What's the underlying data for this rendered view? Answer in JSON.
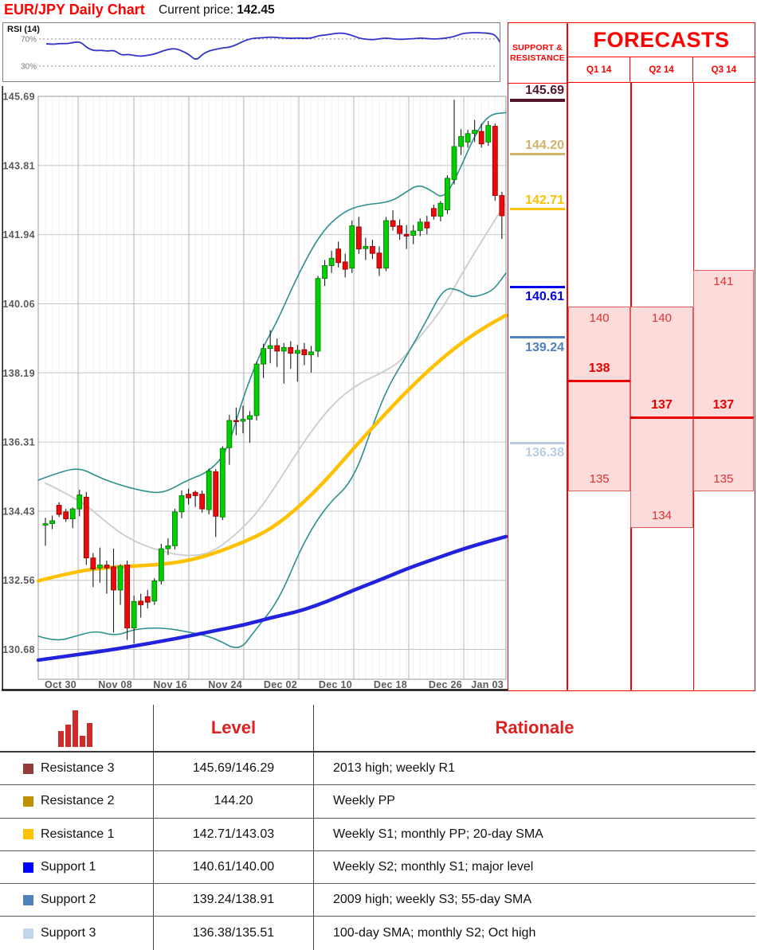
{
  "header": {
    "title": "EUR/JPY Daily Chart",
    "price_label": "Current price:",
    "price_value": "142.45"
  },
  "rsi": {
    "label": "RSI (14)",
    "upper_label": "70%",
    "lower_label": "30%",
    "upper_level": 70,
    "lower_level": 30,
    "values": [
      63,
      62,
      63.5,
      63,
      65,
      66,
      57,
      52.5,
      53.5,
      52,
      53.5,
      46,
      47.5,
      45.5,
      44.5,
      46,
      48,
      52,
      55,
      56,
      52,
      47,
      38,
      48,
      53,
      55,
      57,
      58,
      62,
      67,
      70.5,
      71.5,
      72,
      73,
      72,
      71.5,
      71,
      71.5,
      71,
      71.5,
      75,
      76,
      77.5,
      79,
      78,
      75,
      71,
      69.5,
      69,
      70.5,
      71.5,
      70,
      69.5,
      70,
      70.5,
      71.5,
      70.5,
      70,
      70.5,
      72,
      74,
      78,
      79,
      79.5,
      79,
      78.5,
      76,
      58,
      52
    ]
  },
  "chart_data": {
    "type": "candlestick",
    "title": "EUR/JPY Daily Chart",
    "y_axis_labels": [
      "145.69",
      "143.81",
      "141.94",
      "140.06",
      "138.19",
      "136.31",
      "134.43",
      "132.56",
      "130.68"
    ],
    "x_axis_labels": [
      "Oct 30",
      "Nov 08",
      "Nov 16",
      "Nov 24",
      "Dec 02",
      "Dec 10",
      "Dec 18",
      "Dec 26",
      "Jan 03"
    ],
    "price_range": [
      129.9,
      145.69
    ],
    "candles": [
      [
        134.06,
        134.26,
        133.5,
        134.1
      ],
      [
        134.1,
        134.32,
        133.95,
        134.18
      ],
      [
        134.6,
        134.68,
        134.28,
        134.35
      ],
      [
        134.42,
        134.5,
        134.15,
        134.23
      ],
      [
        134.23,
        134.54,
        133.98,
        134.5
      ],
      [
        134.5,
        135.02,
        134.3,
        134.88
      ],
      [
        134.82,
        134.96,
        132.98,
        133.17
      ],
      [
        133.17,
        133.3,
        132.38,
        132.87
      ],
      [
        132.9,
        133.45,
        132.5,
        132.98
      ],
      [
        132.98,
        133.1,
        132.2,
        132.9
      ],
      [
        132.93,
        133.42,
        131.15,
        132.3
      ],
      [
        132.3,
        133.0,
        131.9,
        132.95
      ],
      [
        132.98,
        133.1,
        130.95,
        131.27
      ],
      [
        131.27,
        132.15,
        130.85,
        131.99
      ],
      [
        132.0,
        132.2,
        131.55,
        131.9
      ],
      [
        132.12,
        132.3,
        131.8,
        131.97
      ],
      [
        132.0,
        132.62,
        131.9,
        132.55
      ],
      [
        132.55,
        133.55,
        132.45,
        133.42
      ],
      [
        133.42,
        133.7,
        133.25,
        133.5
      ],
      [
        133.5,
        134.5,
        133.4,
        134.42
      ],
      [
        134.42,
        135.0,
        134.25,
        134.86
      ],
      [
        134.9,
        135.05,
        134.62,
        134.8
      ],
      [
        134.95,
        135.0,
        134.55,
        134.86
      ],
      [
        134.9,
        135.0,
        134.4,
        134.5
      ],
      [
        134.48,
        135.6,
        134.35,
        135.53
      ],
      [
        135.51,
        135.58,
        133.74,
        134.3
      ],
      [
        134.28,
        136.2,
        134.2,
        136.14
      ],
      [
        136.16,
        137.05,
        135.7,
        136.9
      ],
      [
        136.9,
        137.25,
        136.5,
        136.88
      ],
      [
        136.88,
        137.3,
        136.55,
        136.93
      ],
      [
        136.93,
        137.15,
        136.3,
        137.03
      ],
      [
        137.03,
        138.5,
        136.9,
        138.43
      ],
      [
        138.43,
        138.98,
        138.05,
        138.85
      ],
      [
        138.85,
        139.35,
        138.45,
        138.93
      ],
      [
        138.93,
        139.12,
        138.35,
        138.78
      ],
      [
        138.78,
        139.0,
        137.9,
        138.88
      ],
      [
        138.88,
        139.05,
        138.3,
        138.72
      ],
      [
        138.72,
        138.95,
        137.95,
        138.8
      ],
      [
        138.82,
        139.0,
        138.4,
        138.68
      ],
      [
        138.68,
        138.92,
        138.2,
        138.76
      ],
      [
        138.78,
        140.82,
        138.62,
        140.75
      ],
      [
        140.75,
        141.25,
        140.55,
        141.1
      ],
      [
        141.1,
        141.5,
        140.9,
        141.3
      ],
      [
        141.55,
        141.75,
        141.05,
        141.18
      ],
      [
        141.2,
        141.42,
        140.78,
        141.0
      ],
      [
        141.03,
        142.32,
        140.9,
        142.18
      ],
      [
        142.15,
        142.42,
        141.42,
        141.55
      ],
      [
        141.56,
        141.85,
        141.25,
        141.62
      ],
      [
        141.62,
        141.8,
        141.28,
        141.43
      ],
      [
        141.44,
        141.62,
        140.82,
        141.03
      ],
      [
        141.03,
        142.42,
        140.95,
        142.32
      ],
      [
        142.32,
        142.6,
        142.05,
        142.16
      ],
      [
        142.18,
        142.35,
        141.8,
        141.97
      ],
      [
        141.95,
        142.2,
        141.55,
        141.9
      ],
      [
        141.92,
        142.2,
        141.68,
        142.04
      ],
      [
        142.05,
        142.38,
        141.9,
        142.28
      ],
      [
        142.28,
        142.45,
        141.95,
        142.12
      ],
      [
        142.65,
        142.75,
        142.35,
        142.44
      ],
      [
        142.44,
        142.85,
        142.3,
        142.79
      ],
      [
        142.61,
        143.55,
        142.5,
        143.47
      ],
      [
        143.43,
        145.6,
        143.3,
        144.33
      ],
      [
        144.33,
        144.8,
        144.1,
        144.6
      ],
      [
        144.45,
        144.78,
        144.3,
        144.68
      ],
      [
        144.68,
        145.05,
        144.45,
        144.77
      ],
      [
        144.74,
        144.95,
        144.3,
        144.4
      ],
      [
        144.45,
        145.02,
        144.35,
        144.9
      ],
      [
        144.88,
        144.95,
        142.86,
        143.0
      ],
      [
        143.0,
        143.1,
        141.82,
        142.45
      ]
    ],
    "overlays": {
      "boll_upper_teal": [
        [
          48,
          135.28
        ],
        [
          75,
          135.5
        ],
        [
          100,
          135.62
        ],
        [
          125,
          135.35
        ],
        [
          150,
          135.15
        ],
        [
          180,
          134.98
        ],
        [
          205,
          134.92
        ],
        [
          235,
          135.28
        ],
        [
          262,
          135.5
        ],
        [
          285,
          136.05
        ],
        [
          306,
          137.6
        ],
        [
          330,
          138.9
        ],
        [
          346,
          139.5
        ],
        [
          375,
          140.9
        ],
        [
          403,
          142.0
        ],
        [
          430,
          142.55
        ],
        [
          455,
          142.75
        ],
        [
          490,
          142.82
        ],
        [
          510,
          143.1
        ],
        [
          525,
          143.3
        ],
        [
          540,
          143.15
        ],
        [
          557,
          142.9
        ],
        [
          575,
          143.6
        ],
        [
          595,
          144.6
        ],
        [
          613,
          145.2
        ],
        [
          635,
          145.25
        ]
      ],
      "boll_lower_teal": [
        [
          48,
          131.05
        ],
        [
          70,
          130.9
        ],
        [
          95,
          131.05
        ],
        [
          120,
          131.2
        ],
        [
          145,
          131.05
        ],
        [
          170,
          131.25
        ],
        [
          205,
          131.28
        ],
        [
          240,
          131.15
        ],
        [
          270,
          131.0
        ],
        [
          300,
          130.63
        ],
        [
          320,
          131.2
        ],
        [
          350,
          132.02
        ],
        [
          380,
          133.56
        ],
        [
          410,
          134.6
        ],
        [
          443,
          135.25
        ],
        [
          470,
          136.9
        ],
        [
          487,
          137.82
        ],
        [
          513,
          138.75
        ],
        [
          535,
          139.6
        ],
        [
          557,
          140.5
        ],
        [
          575,
          140.45
        ],
        [
          590,
          140.24
        ],
        [
          605,
          140.3
        ],
        [
          620,
          140.45
        ],
        [
          635,
          140.9
        ]
      ],
      "sma20_gray": [
        [
          57,
          135.2
        ],
        [
          100,
          134.75
        ],
        [
          130,
          134.2
        ],
        [
          160,
          133.7
        ],
        [
          200,
          133.35
        ],
        [
          240,
          133.2
        ],
        [
          270,
          133.35
        ],
        [
          306,
          134.0
        ],
        [
          330,
          134.6
        ],
        [
          360,
          135.6
        ],
        [
          390,
          136.6
        ],
        [
          420,
          137.4
        ],
        [
          450,
          137.9
        ],
        [
          480,
          138.2
        ],
        [
          503,
          138.5
        ],
        [
          520,
          139.0
        ],
        [
          540,
          139.5
        ],
        [
          560,
          140.1
        ],
        [
          580,
          140.9
        ],
        [
          600,
          141.6
        ],
        [
          620,
          142.3
        ],
        [
          635,
          142.8
        ]
      ],
      "sma_yellow": [
        [
          48,
          132.55
        ],
        [
          98,
          132.82
        ],
        [
          140,
          132.92
        ],
        [
          168,
          132.95
        ],
        [
          205,
          133.0
        ],
        [
          237,
          133.1
        ],
        [
          270,
          133.3
        ],
        [
          306,
          133.6
        ],
        [
          340,
          133.95
        ],
        [
          375,
          134.55
        ],
        [
          410,
          135.3
        ],
        [
          444,
          136.15
        ],
        [
          480,
          137.0
        ],
        [
          513,
          137.75
        ],
        [
          550,
          138.5
        ],
        [
          582,
          139.05
        ],
        [
          610,
          139.45
        ],
        [
          635,
          139.75
        ]
      ],
      "sma_blue": [
        [
          48,
          130.4
        ],
        [
          98,
          130.55
        ],
        [
          140,
          130.68
        ],
        [
          168,
          130.78
        ],
        [
          205,
          130.92
        ],
        [
          237,
          131.05
        ],
        [
          270,
          131.2
        ],
        [
          306,
          131.35
        ],
        [
          340,
          131.55
        ],
        [
          375,
          131.72
        ],
        [
          410,
          131.98
        ],
        [
          444,
          132.3
        ],
        [
          480,
          132.6
        ],
        [
          513,
          132.9
        ],
        [
          550,
          133.18
        ],
        [
          582,
          133.42
        ],
        [
          610,
          133.6
        ],
        [
          635,
          133.75
        ]
      ]
    },
    "colors": {
      "up": "#00CE00",
      "up_stroke": "#007500",
      "down": "#EA0A0A",
      "down_stroke": "#8F0000",
      "wick": "#1A1A1A",
      "teal": "#2E8F8F",
      "gray": "#CFCFCF",
      "yellow": "#FFC000",
      "blue": "#2222DD",
      "rsi": "#3333CC"
    }
  },
  "sr_panel": {
    "header_line1": "SUPPORT &",
    "header_line2": "RESISTANCE",
    "levels": [
      {
        "value": "145.69",
        "price": 145.69,
        "color": "#54162B",
        "type": "resistance"
      },
      {
        "value": "144.20",
        "price": 144.2,
        "color": "#D2B36A",
        "type": "resistance"
      },
      {
        "value": "142.71",
        "price": 142.71,
        "color": "#FFC000",
        "type": "resistance"
      },
      {
        "value": "140.61",
        "price": 140.61,
        "color": "#0000EE",
        "type": "support"
      },
      {
        "value": "139.24",
        "price": 139.24,
        "color": "#4F81BD",
        "type": "support"
      },
      {
        "value": "136.38",
        "price": 136.38,
        "color": "#B8CCE4",
        "type": "support"
      }
    ]
  },
  "forecasts": {
    "title": "FORECASTS",
    "quarters": [
      {
        "label": "Q1 14",
        "range_high": 140,
        "range_low": 135,
        "point": 138
      },
      {
        "label": "Q2 14",
        "range_high": 140,
        "range_low": 134,
        "point": 137
      },
      {
        "label": "Q3 14",
        "range_high": 141,
        "range_low": 135,
        "point": 137
      }
    ]
  },
  "table": {
    "level_header": "Level",
    "rationale_header": "Rationale",
    "rows": [
      {
        "marker_color": "#943A38",
        "name": "Resistance 3",
        "level": "145.69/146.29",
        "rationale": "2013 high; weekly R1"
      },
      {
        "marker_color": "#BF8F00",
        "name": "Resistance 2",
        "level": "144.20",
        "rationale": "Weekly PP"
      },
      {
        "marker_color": "#FFC000",
        "name": "Resistance 1",
        "level": "142.71/143.03",
        "rationale": "Weekly S1; monthly PP; 20-day SMA"
      },
      {
        "marker_color": "#0000FE",
        "name": "Support 1",
        "level": "140.61/140.00",
        "rationale": "Weekly S2; monthly S1; major level"
      },
      {
        "marker_color": "#4F81BD",
        "name": "Support 2",
        "level": "139.24/138.91",
        "rationale": "2009 high; weekly S3; 55-day SMA"
      },
      {
        "marker_color": "#C3D5EA",
        "name": "Support 3",
        "level": "136.38/135.51",
        "rationale": "100-day SMA; monthly S2; Oct high"
      }
    ]
  }
}
